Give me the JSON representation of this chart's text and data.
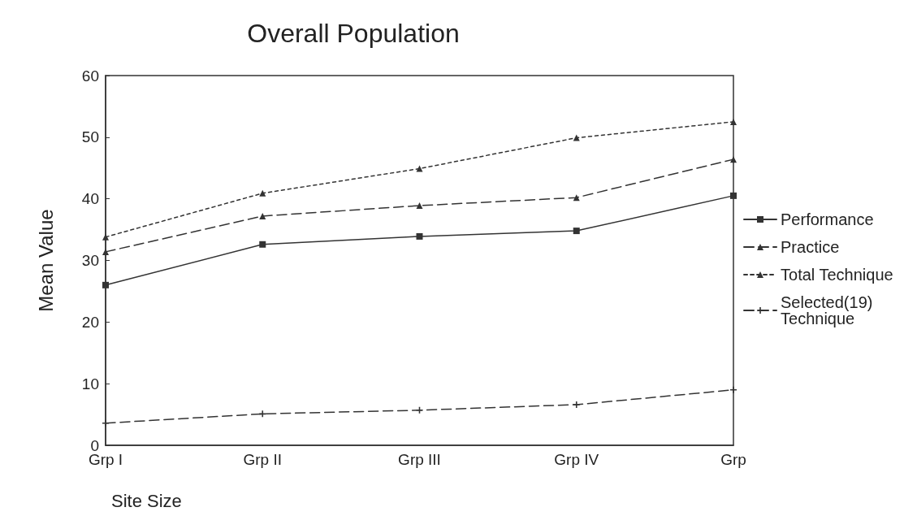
{
  "chart_data": {
    "type": "line",
    "title": "Overall Population",
    "xlabel": "Site Size",
    "ylabel": "Mean Value",
    "categories": [
      "Grp I",
      "Grp II",
      "Grp III",
      "Grp IV",
      "Grp"
    ],
    "series": [
      {
        "name": "Performance",
        "color": "#333333",
        "marker": "square",
        "line_style": "solid",
        "values": [
          26.0,
          32.6,
          33.9,
          34.8,
          40.5
        ]
      },
      {
        "name": "Practice",
        "color": "#333333",
        "marker": "triangle",
        "line_style": "dashed",
        "values": [
          31.4,
          37.2,
          38.9,
          40.2,
          46.4
        ]
      },
      {
        "name": "Total Technique",
        "color": "#333333",
        "marker": "triangle",
        "line_style": "dotted",
        "values": [
          33.8,
          40.9,
          44.9,
          49.9,
          52.5
        ]
      },
      {
        "name": "Selected(19) Technique",
        "color": "#333333",
        "marker": "cross",
        "line_style": "dashed",
        "values": [
          3.6,
          5.1,
          5.7,
          6.6,
          9.0
        ]
      }
    ],
    "ylim": [
      0,
      60
    ],
    "yticks": [
      0,
      10,
      20,
      30,
      40,
      50,
      60
    ],
    "grid": false,
    "legend": "right"
  }
}
